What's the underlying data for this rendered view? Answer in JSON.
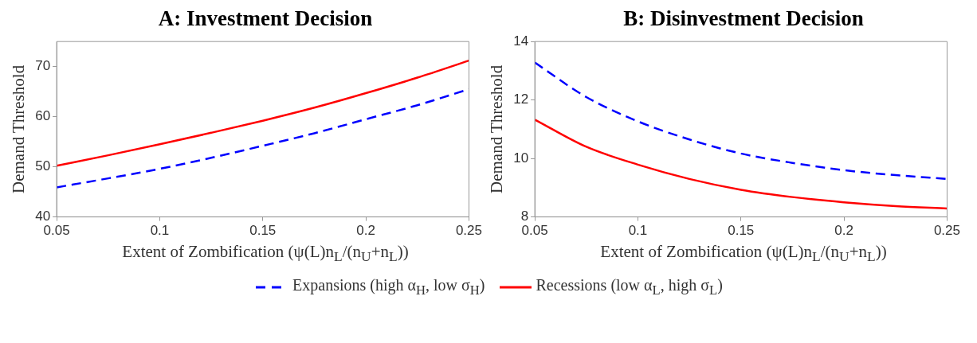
{
  "chart_data": [
    {
      "type": "line",
      "title": "A: Investment Decision",
      "xlabel": "Extent of Zombification (ψ(L)n$_{L}$/(n$_{U}$+n$_{L}$))",
      "ylabel": "Demand Threshold",
      "x": [
        0.05,
        0.075,
        0.1,
        0.125,
        0.15,
        0.175,
        0.2,
        0.225,
        0.25
      ],
      "xlim": [
        0.05,
        0.25
      ],
      "xticks": [
        0.05,
        0.1,
        0.15,
        0.2,
        0.25
      ],
      "ylim": [
        40,
        75
      ],
      "yticks": [
        40,
        50,
        60,
        70
      ],
      "grid": false,
      "legend": "bottom",
      "series": [
        {
          "name": "Expansions (high α$_{H}$, low σ$_{H}$)",
          "color": "#0000ff",
          "line_style": "dashed",
          "values": [
            45.9,
            47.7,
            49.6,
            51.8,
            54.2,
            56.7,
            59.5,
            62.3,
            65.5
          ]
        },
        {
          "name": "Recessions (low α$_{L}$, high σ$_{L}$)",
          "color": "#ff0000",
          "line_style": "solid",
          "values": [
            50.2,
            52.3,
            54.5,
            56.8,
            59.2,
            61.8,
            64.7,
            67.8,
            71.2
          ]
        }
      ]
    },
    {
      "type": "line",
      "title": "B: Disinvestment Decision",
      "xlabel": "Extent of Zombification (ψ(L)n$_{L}$/(n$_{U}$+n$_{L}$))",
      "ylabel": "Demand Threshold",
      "x": [
        0.05,
        0.075,
        0.1,
        0.125,
        0.15,
        0.175,
        0.2,
        0.225,
        0.25
      ],
      "xlim": [
        0.05,
        0.25
      ],
      "xticks": [
        0.05,
        0.1,
        0.15,
        0.2,
        0.25
      ],
      "ylim": [
        8,
        14
      ],
      "yticks": [
        8,
        10,
        12,
        14
      ],
      "grid": false,
      "series": [
        {
          "color": "#0000ff",
          "line_style": "dashed",
          "values": [
            13.28,
            12.1,
            11.27,
            10.65,
            10.17,
            9.85,
            9.6,
            9.43,
            9.3
          ]
        },
        {
          "color": "#ff0000",
          "line_style": "solid",
          "values": [
            11.33,
            10.4,
            9.79,
            9.3,
            8.93,
            8.68,
            8.5,
            8.37,
            8.29
          ]
        }
      ]
    }
  ]
}
